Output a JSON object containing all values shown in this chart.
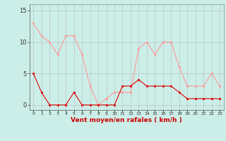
{
  "hours": [
    0,
    1,
    2,
    3,
    4,
    5,
    6,
    7,
    8,
    9,
    10,
    11,
    12,
    13,
    14,
    15,
    16,
    17,
    18,
    19,
    20,
    21,
    22,
    23
  ],
  "avg_wind": [
    5,
    2,
    0,
    0,
    0,
    2,
    0,
    0,
    0,
    0,
    0,
    3,
    3,
    4,
    3,
    3,
    3,
    3,
    2,
    1,
    1,
    1,
    1,
    1
  ],
  "gusts": [
    13,
    11,
    10,
    8,
    11,
    11,
    8,
    3,
    0,
    1,
    2,
    2,
    2,
    9,
    10,
    8,
    10,
    10,
    6,
    3,
    3,
    3,
    5,
    3
  ],
  "avg_color": "#dd0000",
  "gust_color": "#ff9999",
  "bg_color": "#cceee8",
  "grid_color": "#bbbbbb",
  "xlabel": "Vent moyen/en rafales ( km/h )",
  "xlabel_color": "#cc0000",
  "yticks": [
    0,
    5,
    10,
    15
  ],
  "xlim": [
    -0.5,
    23.5
  ],
  "ylim": [
    -0.8,
    16
  ]
}
